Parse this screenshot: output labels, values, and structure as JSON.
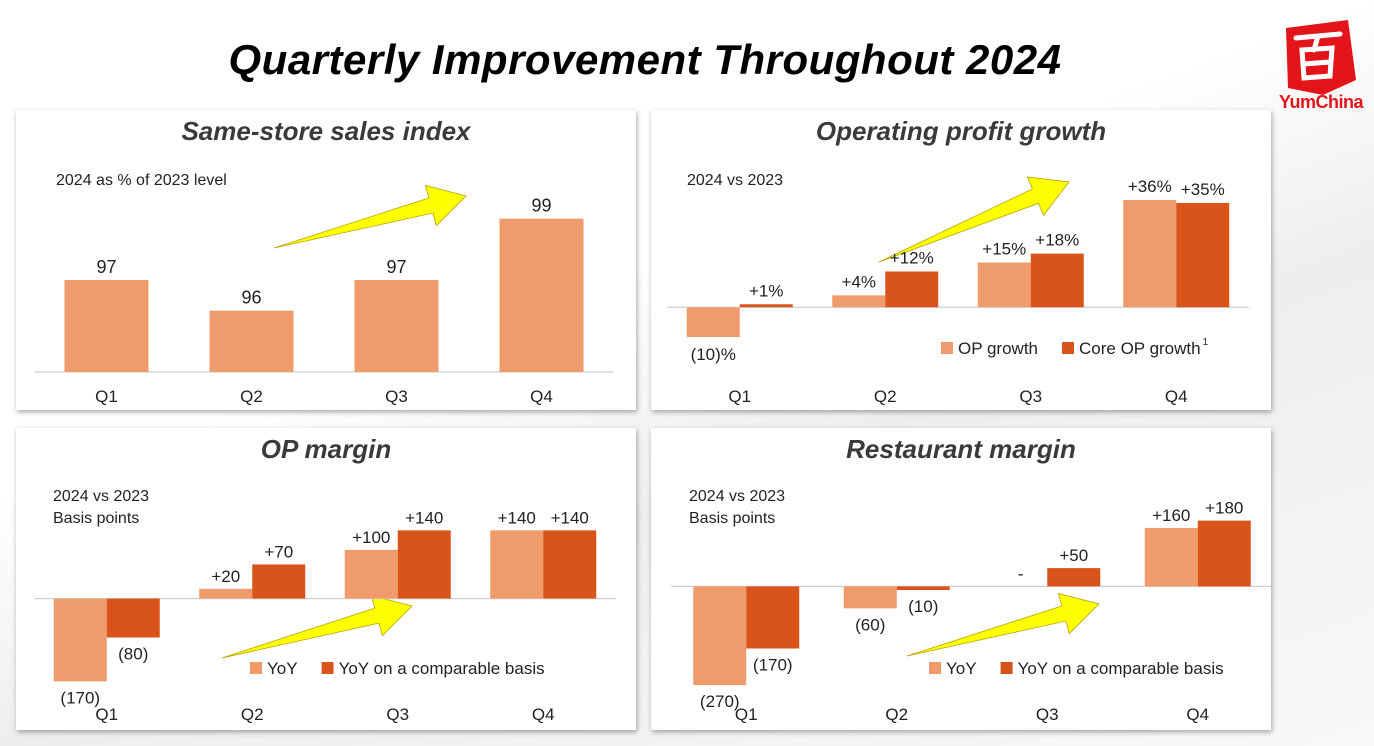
{
  "page": {
    "title": "Quarterly Improvement Throughout 2024",
    "brand": "YumChina",
    "colors": {
      "light": "#f09b6c",
      "dark": "#d9541a",
      "arrow": "#ffff00",
      "title": "#3a3a3a"
    }
  },
  "chart_data": [
    {
      "id": "sss",
      "type": "bar",
      "title": "Same-store sales index",
      "subtitle_lines": [
        "2024 as % of 2023 level"
      ],
      "categories": [
        "Q1",
        "Q2",
        "Q3",
        "Q4"
      ],
      "series": [
        {
          "values": [
            97,
            96,
            97,
            99
          ],
          "labels": [
            "97",
            "96",
            "97",
            "99"
          ],
          "color": "#f09b6c"
        }
      ],
      "ylim": [
        94,
        100
      ],
      "legend": [],
      "trend_arrow": "upward"
    },
    {
      "id": "op",
      "type": "bar",
      "title": "Operating profit growth",
      "subtitle_lines": [
        "2024 vs 2023"
      ],
      "categories": [
        "Q1",
        "Q2",
        "Q3",
        "Q4"
      ],
      "series": [
        {
          "name": "OP growth",
          "values": [
            -10,
            4,
            15,
            36
          ],
          "labels": [
            "(10)%",
            "+4%",
            "+15%",
            "+36%"
          ],
          "color": "#f09b6c"
        },
        {
          "name": "Core OP growth",
          "values": [
            1,
            12,
            18,
            35
          ],
          "labels": [
            "+1%",
            "+12%",
            "+18%",
            "+35%"
          ],
          "color": "#d9541a"
        }
      ],
      "ylim": [
        -13,
        40
      ],
      "legend": [
        "OP growth",
        "Core OP growth"
      ],
      "legend_sup": "1",
      "legend_position": "bottom-right",
      "trend_arrow": "upward"
    },
    {
      "id": "opm",
      "type": "bar",
      "title": "OP margin",
      "subtitle_lines": [
        "2024 vs 2023",
        "Basis points"
      ],
      "categories": [
        "Q1",
        "Q2",
        "Q3",
        "Q4"
      ],
      "series": [
        {
          "name": "YoY",
          "values": [
            -170,
            20,
            100,
            140
          ],
          "labels": [
            "(170)",
            "+20",
            "+100",
            "+140"
          ],
          "color": "#f09b6c"
        },
        {
          "name": "YoY on a comparable basis",
          "values": [
            -80,
            70,
            140,
            140
          ],
          "labels": [
            "(80)",
            "+70",
            "+140",
            "+140"
          ],
          "color": "#d9541a"
        }
      ],
      "ylim": [
        -200,
        190
      ],
      "legend": [
        "YoY",
        "YoY on a comparable basis"
      ],
      "legend_position": "bottom-right",
      "trend_arrow": "upward"
    },
    {
      "id": "rm",
      "type": "bar",
      "title": "Restaurant margin",
      "subtitle_lines": [
        "2024 vs 2023",
        "Basis points"
      ],
      "categories": [
        "Q1",
        "Q2",
        "Q3",
        "Q4"
      ],
      "series": [
        {
          "name": "YoY",
          "values": [
            -270,
            -60,
            0,
            160
          ],
          "labels": [
            "(270)",
            "(60)",
            "-",
            "+160"
          ],
          "color": "#f09b6c"
        },
        {
          "name": "YoY on a comparable basis",
          "values": [
            -170,
            -10,
            50,
            180
          ],
          "labels": [
            "(170)",
            "(10)",
            "+50",
            "+180"
          ],
          "color": "#d9541a"
        }
      ],
      "ylim": [
        -300,
        220
      ],
      "legend": [
        "YoY",
        "YoY on a comparable basis"
      ],
      "legend_position": "bottom-right",
      "trend_arrow": "upward"
    }
  ]
}
